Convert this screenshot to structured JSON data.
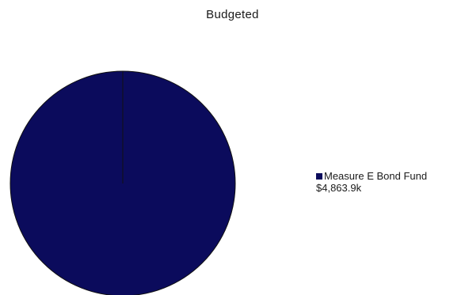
{
  "chart_data": {
    "type": "pie",
    "title": "Budgeted",
    "legend_position": "right",
    "slices": [
      {
        "label": "Measure E Bond Fund",
        "value_label": "$4,863.9k",
        "value": 4863.9,
        "color": "#0b0b5c"
      }
    ]
  }
}
